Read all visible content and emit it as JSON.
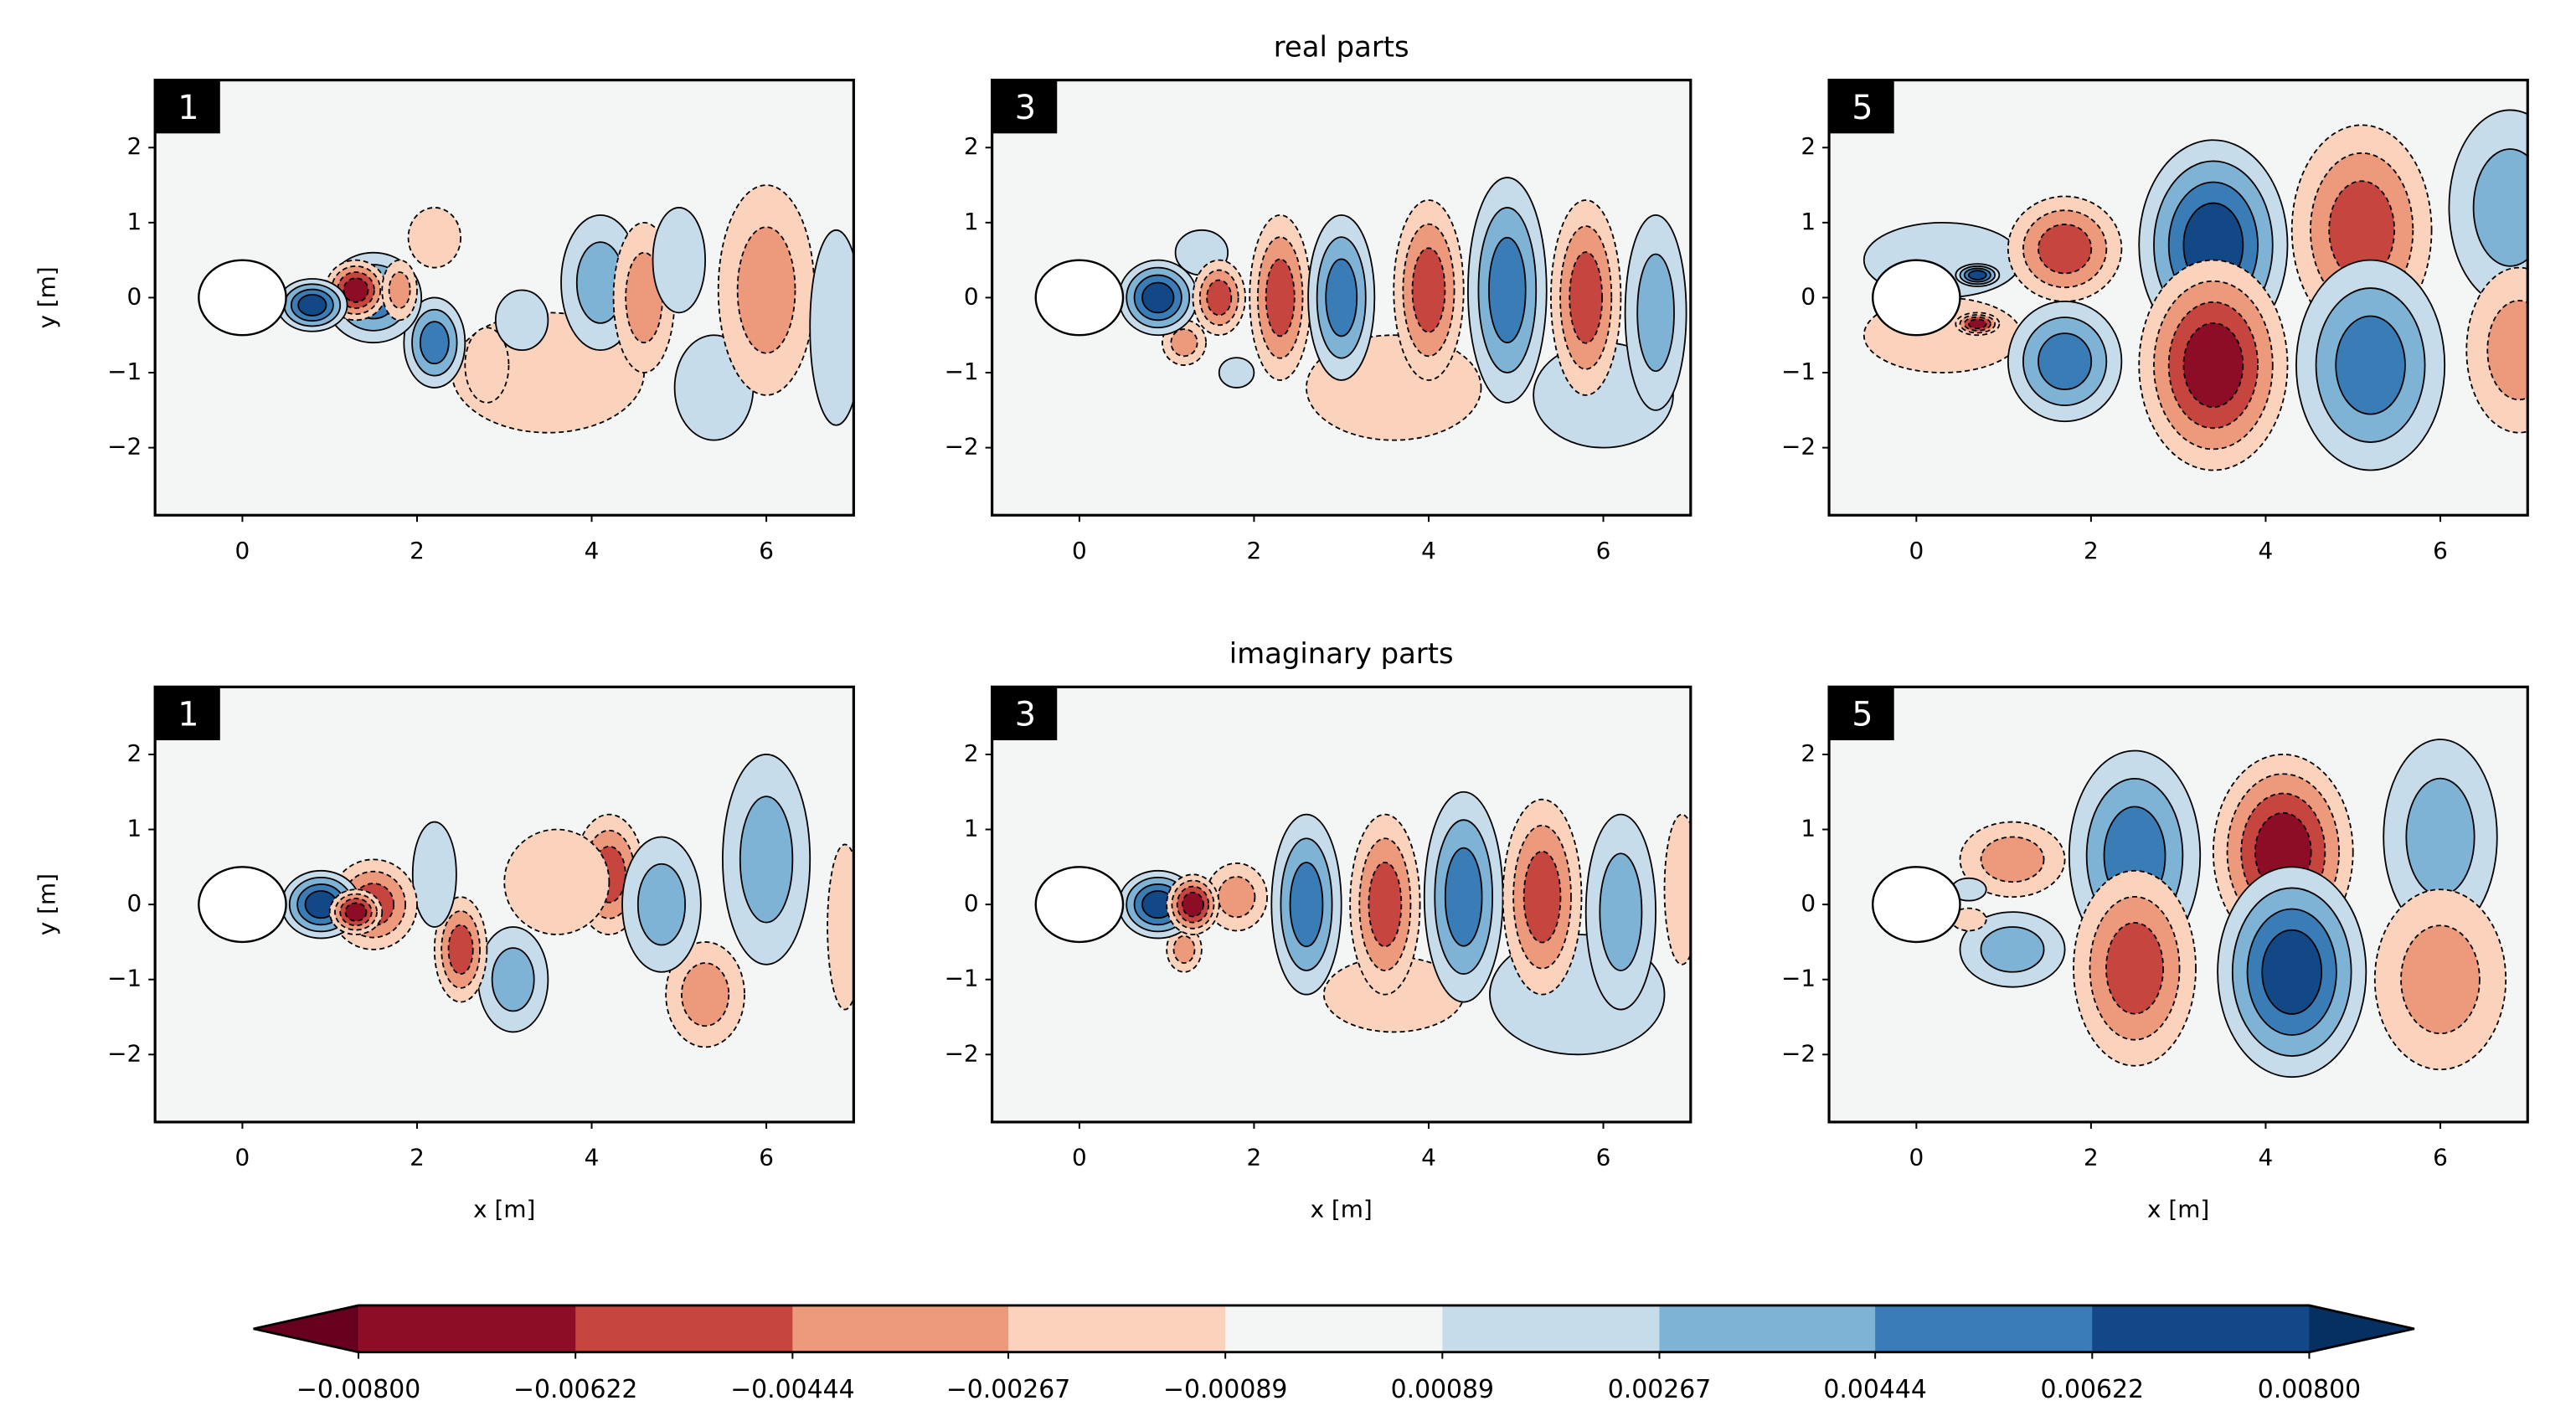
{
  "chart_data": [
    {
      "type": "contour",
      "label": "1",
      "xlim": [
        -1,
        7
      ],
      "ylim": [
        -2.9,
        2.9
      ],
      "xticks": [
        0,
        2,
        4,
        6
      ],
      "yticks": [
        {
          "value": -2,
          "label": "−2"
        },
        {
          "value": -1,
          "label": "−1"
        },
        0,
        1,
        2
      ],
      "ylabel": "y [m]"
    },
    {
      "type": "contour",
      "label": "3",
      "title": "real parts",
      "xlim": [
        -1,
        7
      ],
      "ylim": [
        -2.9,
        2.9
      ],
      "xticks": [
        0,
        2,
        4,
        6
      ],
      "yticks": [
        {
          "value": -2,
          "label": "−2"
        },
        {
          "value": -1,
          "label": "−1"
        },
        0,
        1,
        2
      ]
    },
    {
      "type": "contour",
      "label": "5",
      "xlim": [
        -1,
        7
      ],
      "ylim": [
        -2.9,
        2.9
      ],
      "xticks": [
        0,
        2,
        4,
        6
      ],
      "yticks": [
        {
          "value": -2,
          "label": "−2"
        },
        {
          "value": -1,
          "label": "−1"
        },
        0,
        1,
        2
      ]
    },
    {
      "type": "contour",
      "label": "1",
      "xlim": [
        -1,
        7
      ],
      "ylim": [
        -2.9,
        2.9
      ],
      "xticks": [
        0,
        2,
        4,
        6
      ],
      "yticks": [
        {
          "value": -2,
          "label": "−2"
        },
        {
          "value": -1,
          "label": "−1"
        },
        0,
        1,
        2
      ],
      "ylabel": "y [m]",
      "xlabel": "x [m]"
    },
    {
      "type": "contour",
      "label": "3",
      "title": "imaginary parts",
      "xlim": [
        -1,
        7
      ],
      "ylim": [
        -2.9,
        2.9
      ],
      "xticks": [
        0,
        2,
        4,
        6
      ],
      "yticks": [
        {
          "value": -2,
          "label": "−2"
        },
        {
          "value": -1,
          "label": "−1"
        },
        0,
        1,
        2
      ],
      "xlabel": "x [m]"
    },
    {
      "type": "contour",
      "label": "5",
      "xlim": [
        -1,
        7
      ],
      "ylim": [
        -2.9,
        2.9
      ],
      "xticks": [
        0,
        2,
        4,
        6
      ],
      "yticks": [
        {
          "value": -2,
          "label": "−2"
        },
        {
          "value": -1,
          "label": "−1"
        },
        0,
        1,
        2
      ],
      "xlabel": "x [m]"
    },
    {
      "type": "colorbar",
      "ticks": [
        {
          "value": -0.008,
          "label": "−0.00800"
        },
        {
          "value": -0.00622,
          "label": "−0.00622"
        },
        {
          "value": -0.00444,
          "label": "−0.00444"
        },
        {
          "value": -0.00267,
          "label": "−0.00267"
        },
        {
          "value": -0.00089,
          "label": "−0.00089"
        },
        0.00089,
        0.00267,
        0.00444,
        0.00622,
        {
          "value": 0.008,
          "label": "0.00800"
        }
      ],
      "colors": [
        "#8c0d25",
        "#c6463f",
        "#ec9a7b",
        "#fbd2bc",
        "#f4f6f5",
        "#c7dceb",
        "#7fb3d5",
        "#3a7cb6",
        "#124885"
      ],
      "extend_colors": [
        "#67001f",
        "#053061"
      ]
    }
  ]
}
